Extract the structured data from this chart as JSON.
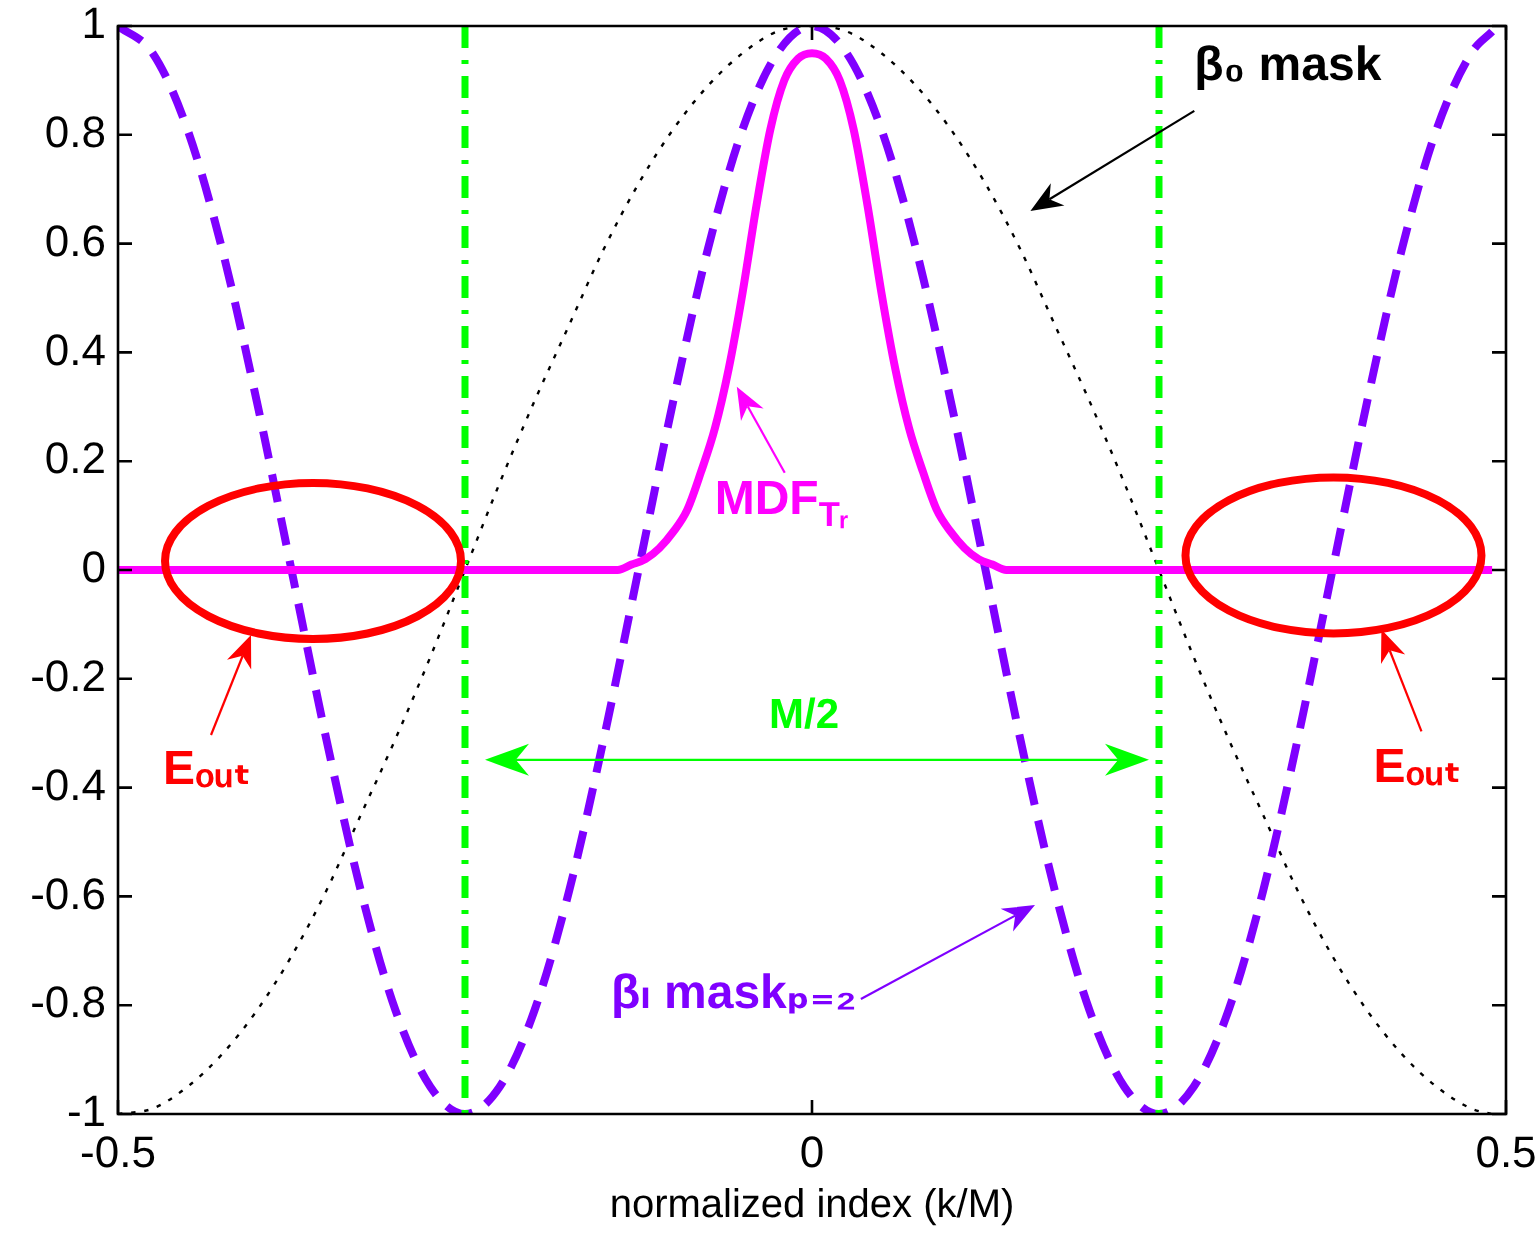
{
  "chart_data": {
    "type": "line",
    "xlabel": "normalized index (k/M)",
    "x": [
      -0.5,
      -0.475,
      -0.45,
      -0.425,
      -0.4,
      -0.375,
      -0.35,
      -0.325,
      -0.3,
      -0.275,
      -0.25,
      -0.225,
      -0.2,
      -0.175,
      -0.15,
      -0.125,
      -0.1,
      -0.075,
      -0.05,
      -0.025,
      0,
      0.025,
      0.05,
      0.075,
      0.1,
      0.125,
      0.15,
      0.175,
      0.2,
      0.225,
      0.25,
      0.275,
      0.3,
      0.325,
      0.35,
      0.375,
      0.4,
      0.425,
      0.45,
      0.475,
      0.49
    ],
    "series": [
      {
        "name": "MDF$_{Tᵣ}$",
        "color": "#ff00ff",
        "line_style": "solid",
        "x": [
          -0.5,
          -0.16,
          -0.14,
          -0.13,
          -0.12,
          -0.11,
          -0.1,
          -0.09,
          -0.08,
          -0.07,
          -0.06,
          -0.05,
          -0.04,
          -0.03,
          -0.02,
          -0.01,
          0,
          0.01,
          0.02,
          0.03,
          0.04,
          0.05,
          0.06,
          0.07,
          0.08,
          0.09,
          0.1,
          0.11,
          0.12,
          0.13,
          0.14,
          0.16,
          0.49
        ],
        "values": [
          0,
          0,
          0,
          0.01,
          0.02,
          0.04,
          0.07,
          0.11,
          0.18,
          0.26,
          0.37,
          0.51,
          0.67,
          0.81,
          0.9,
          0.94,
          0.95,
          0.94,
          0.9,
          0.81,
          0.67,
          0.51,
          0.37,
          0.26,
          0.18,
          0.11,
          0.07,
          0.04,
          0.02,
          0.01,
          0,
          0,
          0
        ]
      },
      {
        "name": "βₗ maskₚ₌₂",
        "color": "#7f00ff",
        "line_style": "dashed",
        "values": [
          1,
          0.95,
          0.81,
          0.59,
          0.31,
          0,
          -0.31,
          -0.59,
          -0.81,
          -0.95,
          -1,
          -0.95,
          -0.81,
          -0.59,
          -0.31,
          0,
          0.31,
          0.59,
          0.81,
          0.95,
          1,
          0.95,
          0.81,
          0.59,
          0.31,
          0,
          -0.31,
          -0.59,
          -0.81,
          -0.95,
          -1,
          -0.95,
          -0.81,
          -0.59,
          -0.31,
          0,
          0.31,
          0.59,
          0.81,
          0.95,
          0.99
        ]
      },
      {
        "name": "β₀ mask",
        "color": "#000000",
        "line_style": "dotted",
        "values": [
          -1,
          -0.99,
          -0.95,
          -0.89,
          -0.81,
          -0.71,
          -0.59,
          -0.45,
          -0.31,
          -0.16,
          0,
          0.16,
          0.31,
          0.45,
          0.59,
          0.71,
          0.81,
          0.89,
          0.95,
          0.99,
          1,
          0.99,
          0.95,
          0.89,
          0.81,
          0.71,
          0.59,
          0.45,
          0.31,
          0.16,
          0,
          -0.16,
          -0.31,
          -0.45,
          -0.59,
          -0.71,
          -0.81,
          -0.89,
          -0.95,
          -0.99,
          -1
        ]
      }
    ],
    "xlim": [
      -0.5,
      0.5
    ],
    "xticks": [
      -0.5,
      0,
      0.5
    ],
    "ylim": [
      -1,
      1
    ],
    "yticks": [
      -1,
      -0.8,
      -0.6,
      -0.4,
      -0.2,
      0,
      0.2,
      0.4,
      0.6,
      0.8,
      1
    ],
    "ref_lines": [
      {
        "axis": "x",
        "value": -0.25,
        "color": "#00ff00",
        "line_style": "dashdot"
      },
      {
        "axis": "x",
        "value": 0.25,
        "color": "#00ff00",
        "line_style": "dashdot"
      }
    ],
    "annotations": [
      "Eₒᵤₜ",
      "Eₒᵤₜ",
      "M/2"
    ]
  }
}
